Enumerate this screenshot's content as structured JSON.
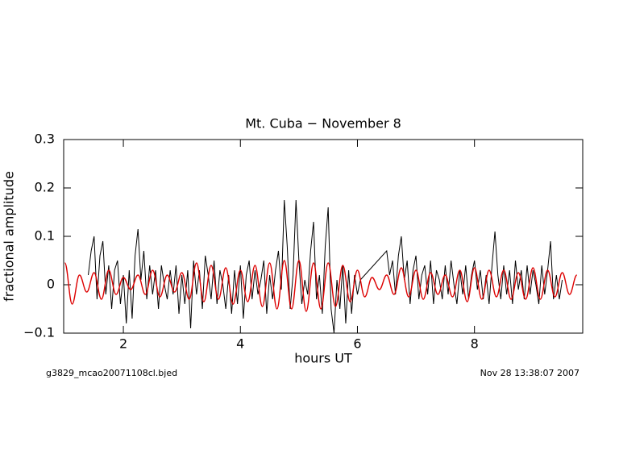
{
  "chart_data": {
    "type": "line",
    "title": "Mt. Cuba − November 8",
    "xlabel": "hours UT",
    "ylabel": "fractional amplitude",
    "footer_left": "g3829_mcao20071108cl.bjed",
    "footer_right": "Nov 28 13:38:07 2007",
    "xlim": [
      0.98,
      9.85
    ],
    "ylim": [
      -0.1,
      0.3
    ],
    "xticks": [
      2,
      4,
      6,
      8
    ],
    "yticks": [
      {
        "value": -0.1,
        "label": "−0.1"
      },
      0,
      0.1,
      0.2,
      0.3
    ],
    "series": [
      {
        "color": "#000000",
        "x": [
          1.4,
          1.45,
          1.5,
          1.55,
          1.6,
          1.65,
          1.7,
          1.75,
          1.8,
          1.85,
          1.9,
          1.95,
          2,
          2.05,
          2.1,
          2.15,
          2.2,
          2.25,
          2.3,
          2.35,
          2.4,
          2.45,
          2.5,
          2.55,
          2.6,
          2.65,
          2.7,
          2.75,
          2.8,
          2.85,
          2.9,
          2.95,
          3,
          3.05,
          3.1,
          3.15,
          3.2,
          3.25,
          3.3,
          3.35,
          3.4,
          3.45,
          3.5,
          3.55,
          3.6,
          3.65,
          3.7,
          3.75,
          3.8,
          3.85,
          3.9,
          3.95,
          4,
          4.05,
          4.1,
          4.15,
          4.2,
          4.25,
          4.3,
          4.35,
          4.4,
          4.45,
          4.5,
          4.55,
          4.6,
          4.65,
          4.7,
          4.75,
          4.8,
          4.85,
          4.9,
          4.95,
          5,
          5.05,
          5.1,
          5.15,
          5.2,
          5.25,
          5.3,
          5.35,
          5.4,
          5.45,
          5.5,
          5.55,
          5.6,
          5.65,
          5.7,
          5.75,
          5.8,
          5.85,
          5.9,
          5.95,
          6,
          6.05,
          6.5,
          6.55,
          6.6,
          6.65,
          6.7,
          6.75,
          6.8,
          6.85,
          6.9,
          6.95,
          7,
          7.05,
          7.1,
          7.15,
          7.2,
          7.25,
          7.3,
          7.35,
          7.4,
          7.45,
          7.5,
          7.55,
          7.6,
          7.65,
          7.7,
          7.75,
          7.8,
          7.85,
          7.9,
          7.95,
          8,
          8.05,
          8.1,
          8.15,
          8.2,
          8.25,
          8.3,
          8.35,
          8.4,
          8.45,
          8.5,
          8.55,
          8.6,
          8.65,
          8.7,
          8.75,
          8.8,
          8.85,
          8.9,
          8.95,
          9,
          9.05,
          9.1,
          9.15,
          9.2,
          9.25,
          9.3,
          9.35,
          9.4,
          9.45,
          9.5
        ],
        "values": [
          0.02,
          0.07,
          0.1,
          -0.03,
          0.06,
          0.09,
          -0.02,
          0.04,
          -0.05,
          0.03,
          0.05,
          -0.04,
          0.02,
          -0.08,
          0.03,
          -0.07,
          0.06,
          0.115,
          0.01,
          0.07,
          -0.03,
          0.04,
          -0.02,
          0.03,
          -0.05,
          0.04,
          0,
          -0.03,
          0.03,
          -0.02,
          0.04,
          -0.06,
          0.02,
          -0.04,
          0.03,
          -0.09,
          0.05,
          -0.02,
          0.03,
          -0.05,
          0.06,
          0.02,
          -0.03,
          0.05,
          -0.04,
          0.03,
          0,
          -0.05,
          0.02,
          -0.06,
          0.03,
          -0.04,
          0.04,
          -0.07,
          0.02,
          0.05,
          -0.03,
          0.03,
          -0.02,
          0.01,
          0.05,
          -0.06,
          0.02,
          -0.03,
          0.03,
          0.07,
          -0.01,
          0.175,
          0.08,
          -0.05,
          0.02,
          0.175,
          0.05,
          -0.04,
          0.01,
          -0.02,
          0.07,
          0.13,
          -0.03,
          0.02,
          -0.06,
          0.08,
          0.16,
          -0.05,
          -0.1,
          0.01,
          -0.05,
          0.04,
          -0.08,
          0.03,
          -0.06,
          0.02,
          -0.02,
          0.01,
          0.07,
          0.02,
          0.05,
          -0.02,
          0.06,
          0.1,
          0.01,
          0.05,
          -0.04,
          0.03,
          0.06,
          -0.03,
          0.02,
          0.04,
          -0.02,
          0.05,
          -0.04,
          0.03,
          0.01,
          -0.03,
          0.04,
          -0.02,
          0.05,
          0,
          -0.04,
          0.03,
          -0.02,
          0.04,
          -0.03,
          0.02,
          0.05,
          -0.01,
          0.03,
          -0.03,
          0.02,
          -0.04,
          0.04,
          0.11,
          0.02,
          -0.03,
          0.04,
          -0.02,
          0.03,
          -0.04,
          0.05,
          -0.01,
          0.03,
          -0.03,
          0.04,
          -0.02,
          0.03,
          0,
          -0.04,
          0.04,
          -0.02,
          0.03,
          0.09,
          -0.03,
          0.02,
          -0.03,
          0.01
        ]
      },
      {
        "color": "#dd0000",
        "x": [
          1,
          1.125,
          1.25,
          1.375,
          1.5,
          1.625,
          1.75,
          1.875,
          2,
          2.125,
          2.25,
          2.375,
          2.5,
          2.625,
          2.75,
          2.875,
          3,
          3.125,
          3.25,
          3.375,
          3.5,
          3.625,
          3.75,
          3.875,
          4,
          4.125,
          4.25,
          4.375,
          4.5,
          4.625,
          4.75,
          4.875,
          5,
          5.125,
          5.25,
          5.375,
          5.5,
          5.625,
          5.75,
          5.875,
          6,
          6.125,
          6.25,
          6.375,
          6.5,
          6.625,
          6.75,
          6.875,
          7,
          7.125,
          7.25,
          7.375,
          7.5,
          7.625,
          7.75,
          7.875,
          8,
          8.125,
          8.25,
          8.375,
          8.5,
          8.625,
          8.75,
          8.875,
          9,
          9.125,
          9.25,
          9.375,
          9.5,
          9.625,
          9.75
        ],
        "values": [
          0.045,
          -0.04,
          0.02,
          -0.015,
          0.025,
          -0.03,
          0.03,
          -0.02,
          0.015,
          -0.01,
          0.02,
          -0.02,
          0.03,
          -0.025,
          0.02,
          -0.015,
          0.025,
          -0.03,
          0.045,
          -0.035,
          0.04,
          -0.03,
          0.035,
          -0.04,
          0.03,
          -0.035,
          0.04,
          -0.045,
          0.045,
          -0.05,
          0.05,
          -0.05,
          0.05,
          -0.055,
          0.045,
          -0.05,
          0.045,
          -0.045,
          0.04,
          -0.035,
          0.03,
          -0.025,
          0.015,
          -0.01,
          0.02,
          -0.02,
          0.035,
          -0.025,
          0.03,
          -0.03,
          0.025,
          -0.02,
          0.02,
          -0.025,
          0.03,
          -0.035,
          0.035,
          -0.03,
          0.03,
          -0.025,
          0.03,
          -0.03,
          0.025,
          -0.03,
          0.035,
          -0.03,
          0.03,
          -0.025,
          0.025,
          -0.02,
          0.02
        ]
      }
    ]
  }
}
